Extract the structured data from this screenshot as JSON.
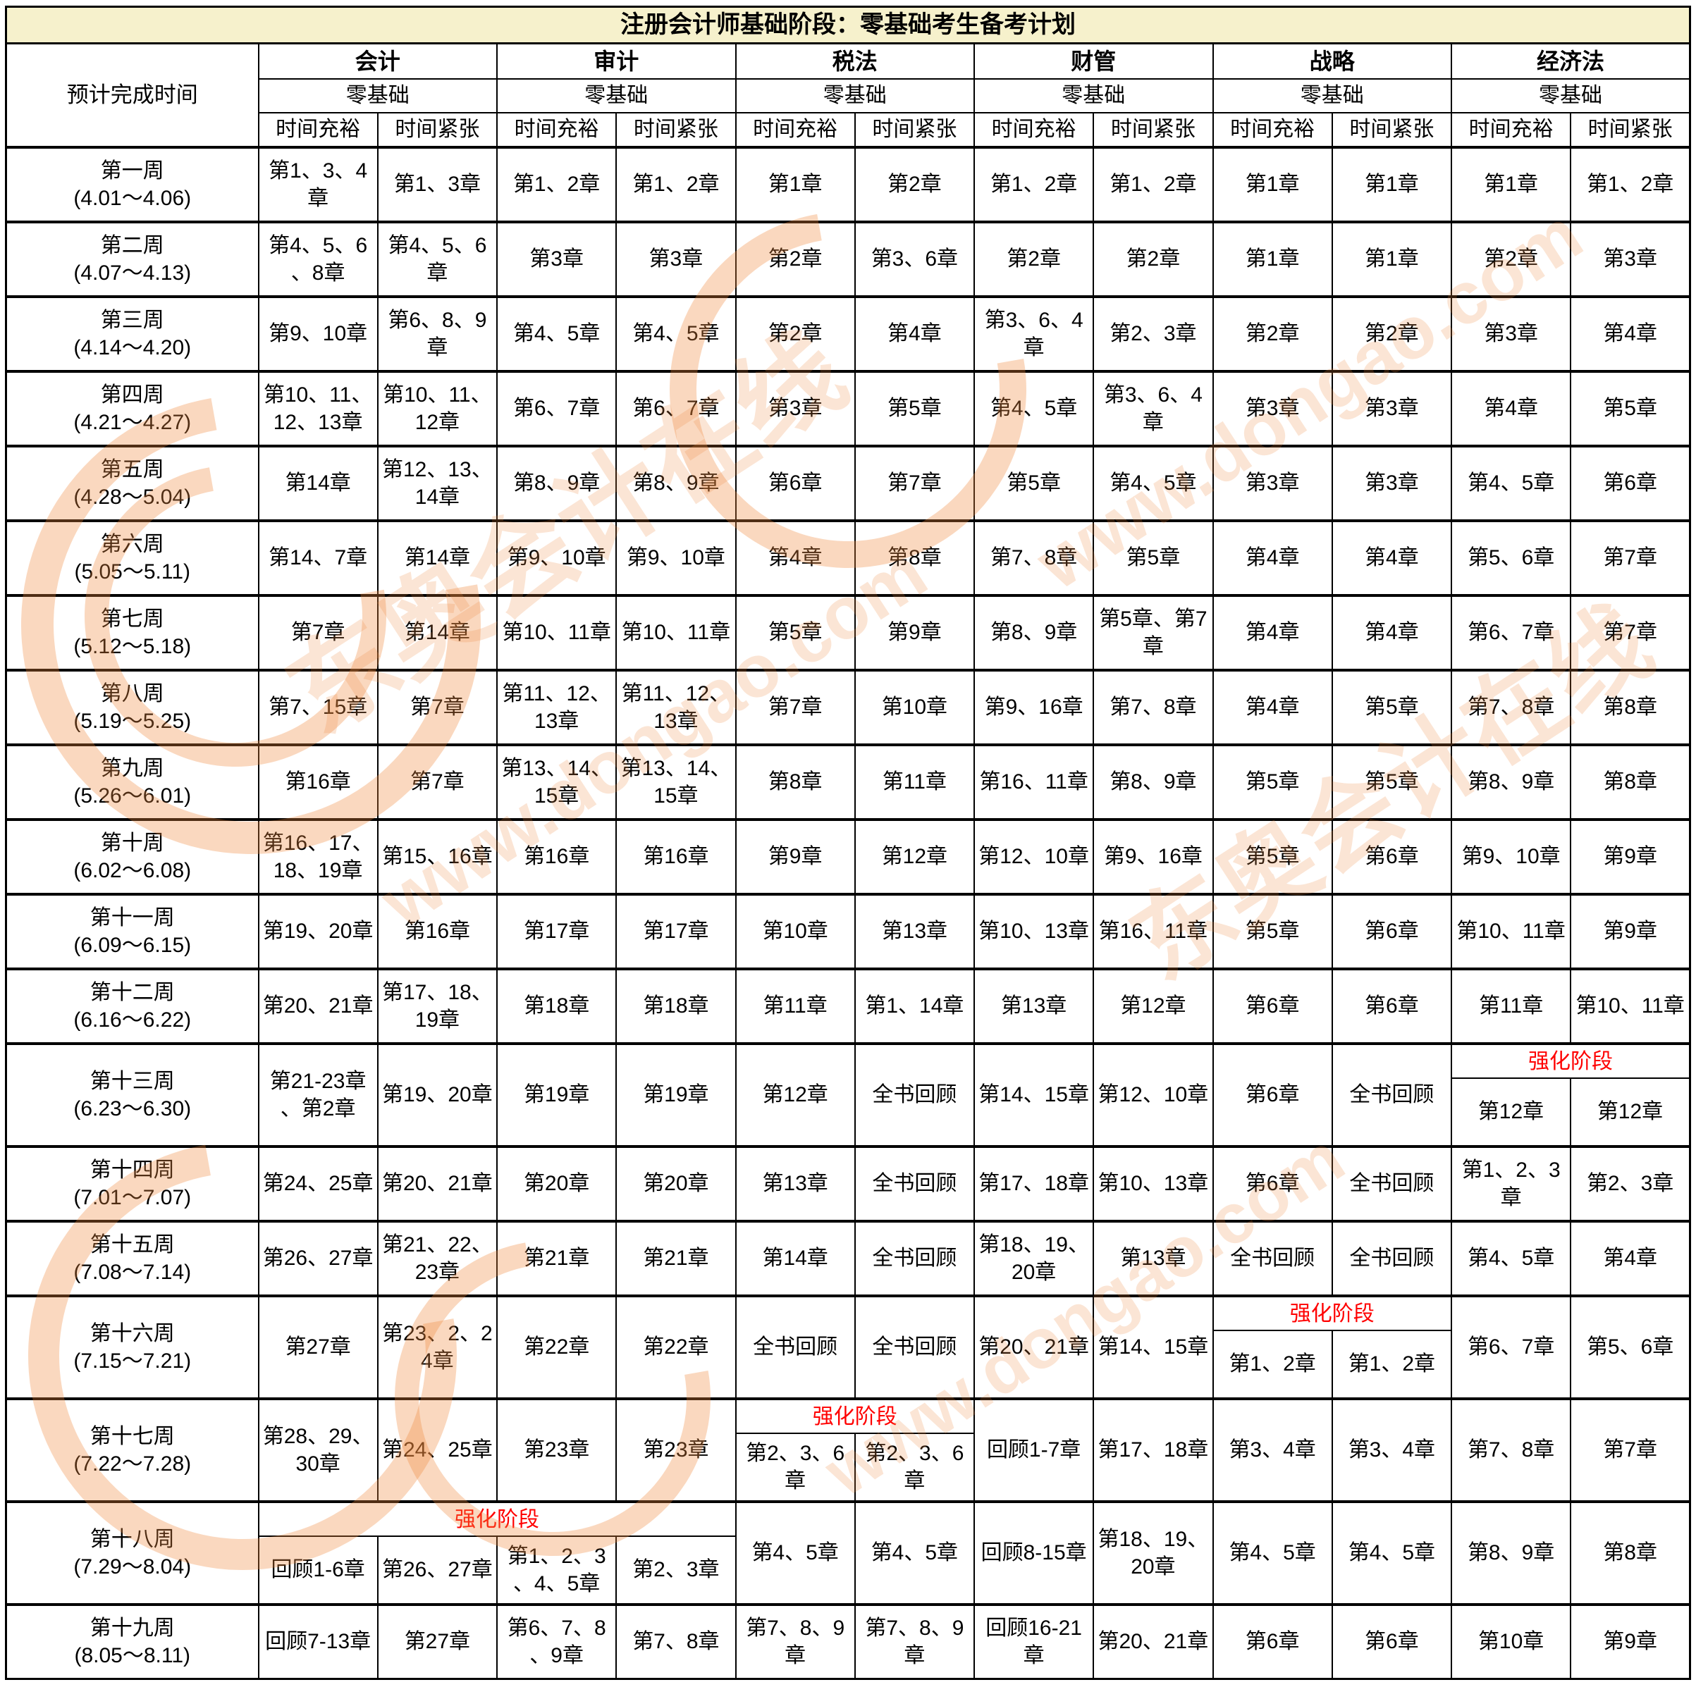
{
  "title": "注册会计师基础阶段：零基础考生备考计划",
  "header": {
    "time_col": "预计完成时间",
    "subjects": [
      "会计",
      "审计",
      "税法",
      "财管",
      "战略",
      "经济法"
    ],
    "level": "零基础",
    "pace_cols": [
      "时间充裕",
      "时间紧张"
    ]
  },
  "phase_label": "强化阶段",
  "colors": {
    "title_bg": "#f6f1cc",
    "phase_red": "#ff0000",
    "border": "#000000",
    "watermark_orange": "#ef8a3e"
  },
  "watermark": {
    "texts": [
      "东奥会计在线",
      "www.dongao.com",
      "www.dongao.com",
      "东奥会计在线",
      "www.dongao.com"
    ]
  },
  "weeks": [
    {
      "label": "第一周",
      "dates": "(4.01～4.06)",
      "cells": [
        "第1、3、4章",
        "第1、3章",
        "第1、2章",
        "第1、2章",
        "第1章",
        "第2章",
        "第1、2章",
        "第1、2章",
        "第1章",
        "第1章",
        "第1章",
        "第1、2章"
      ]
    },
    {
      "label": "第二周",
      "dates": "(4.07～4.13)",
      "cells": [
        "第4、5、6、8章",
        "第4、5、6章",
        "第3章",
        "第3章",
        "第2章",
        "第3、6章",
        "第2章",
        "第2章",
        "第1章",
        "第1章",
        "第2章",
        "第3章"
      ]
    },
    {
      "label": "第三周",
      "dates": "(4.14～4.20)",
      "cells": [
        "第9、10章",
        "第6、8、9章",
        "第4、5章",
        "第4、5章",
        "第2章",
        "第4章",
        "第3、6、4章",
        "第2、3章",
        "第2章",
        "第2章",
        "第3章",
        "第4章"
      ]
    },
    {
      "label": "第四周",
      "dates": "(4.21～4.27)",
      "cells": [
        "第10、11、12、13章",
        "第10、11、12章",
        "第6、7章",
        "第6、7章",
        "第3章",
        "第5章",
        "第4、5章",
        "第3、6、4章",
        "第3章",
        "第3章",
        "第4章",
        "第5章"
      ]
    },
    {
      "label": "第五周",
      "dates": "(4.28～5.04)",
      "cells": [
        "第14章",
        "第12、13、14章",
        "第8、9章",
        "第8、9章",
        "第6章",
        "第7章",
        "第5章",
        "第4、5章",
        "第3章",
        "第3章",
        "第4、5章",
        "第6章"
      ]
    },
    {
      "label": "第六周",
      "dates": "(5.05～5.11)",
      "cells": [
        "第14、7章",
        "第14章",
        "第9、10章",
        "第9、10章",
        "第4章",
        "第8章",
        "第7、8章",
        "第5章",
        "第4章",
        "第4章",
        "第5、6章",
        "第7章"
      ]
    },
    {
      "label": "第七周",
      "dates": "(5.12～5.18)",
      "cells": [
        "第7章",
        "第14章",
        "第10、11章",
        "第10、11章",
        "第5章",
        "第9章",
        "第8、9章",
        "第5章、第7章",
        "第4章",
        "第4章",
        "第6、7章",
        "第7章"
      ]
    },
    {
      "label": "第八周",
      "dates": "(5.19～5.25)",
      "cells": [
        "第7、15章",
        "第7章",
        "第11、12、13章",
        "第11、12、13章",
        "第7章",
        "第10章",
        "第9、16章",
        "第7、8章",
        "第4章",
        "第5章",
        "第7、8章",
        "第8章"
      ]
    },
    {
      "label": "第九周",
      "dates": "(5.26～6.01)",
      "cells": [
        "第16章",
        "第7章",
        "第13、14、15章",
        "第13、14、15章",
        "第8章",
        "第11章",
        "第16、11章",
        "第8、9章",
        "第5章",
        "第5章",
        "第8、9章",
        "第8章"
      ]
    },
    {
      "label": "第十周",
      "dates": "(6.02～6.08)",
      "cells": [
        "第16、17、18、19章",
        "第15、16章",
        "第16章",
        "第16章",
        "第9章",
        "第12章",
        "第12、10章",
        "第9、16章",
        "第5章",
        "第6章",
        "第9、10章",
        "第9章"
      ]
    },
    {
      "label": "第十一周",
      "dates": "(6.09～6.15)",
      "cells": [
        "第19、20章",
        "第16章",
        "第17章",
        "第17章",
        "第10章",
        "第13章",
        "第10、13章",
        "第16、11章",
        "第5章",
        "第6章",
        "第10、11章",
        "第9章"
      ]
    },
    {
      "label": "第十二周",
      "dates": "(6.16～6.22)",
      "cells": [
        "第20、21章",
        "第17、18、19章",
        "第18章",
        "第18章",
        "第11章",
        "第1、14章",
        "第13章",
        "第12章",
        "第6章",
        "第6章",
        "第11章",
        "第10、11章"
      ]
    },
    {
      "label": "第十三周",
      "dates": "(6.23～6.30)",
      "cells": [
        "第21-23章、第2章",
        "第19、20章",
        "第19章",
        "第19章",
        "第12章",
        "全书回顾",
        "第14、15章",
        "第12、10章",
        "第6章",
        "全书回顾",
        {
          "phase": "强化阶段",
          "cells": [
            "第12章",
            "第12章"
          ]
        }
      ]
    },
    {
      "label": "第十四周",
      "dates": "(7.01～7.07)",
      "cells": [
        "第24、25章",
        "第20、21章",
        "第20章",
        "第20章",
        "第13章",
        "全书回顾",
        "第17、18章",
        "第10、13章",
        "第6章",
        "全书回顾",
        "第1、2、3章",
        "第2、3章"
      ]
    },
    {
      "label": "第十五周",
      "dates": "(7.08～7.14)",
      "cells": [
        "第26、27章",
        "第21、22、23章",
        "第21章",
        "第21章",
        "第14章",
        "全书回顾",
        "第18、19、20章",
        "第13章",
        "全书回顾",
        "全书回顾",
        "第4、5章",
        "第4章"
      ]
    },
    {
      "label": "第十六周",
      "dates": "(7.15～7.21)",
      "cells": [
        "第27章",
        "第23、2、24章",
        "第22章",
        "第22章",
        "全书回顾",
        "全书回顾",
        "第20、21章",
        "第14、15章",
        {
          "phase": "强化阶段",
          "cells": [
            "第1、2章",
            "第1、2章"
          ]
        },
        "第6、7章",
        "第5、6章"
      ]
    },
    {
      "label": "第十七周",
      "dates": "(7.22～7.28)",
      "cells": [
        "第28、29、30章",
        "第24、25章",
        "第23章",
        "第23章",
        {
          "phase": "强化阶段",
          "cells": [
            "第2、3、6章",
            "第2、3、6章"
          ]
        },
        "回顾1-7章",
        "第17、18章",
        "第3、4章",
        "第3、4章",
        "第7、8章",
        "第7章"
      ]
    },
    {
      "label": "第十八周",
      "dates": "(7.29～8.04)",
      "cells": [
        {
          "phase": "强化阶段",
          "cells": [
            "回顾1-6章",
            "第26、27章",
            "第1、2、3、4、5章",
            "第2、3章"
          ]
        },
        "第4、5章",
        "第4、5章",
        "回顾8-15章",
        "第18、19、20章",
        "第4、5章",
        "第4、5章",
        "第8、9章",
        "第8章"
      ]
    },
    {
      "label": "第十九周",
      "dates": "(8.05～8.11)",
      "cells": [
        "回顾7-13章",
        "第27章",
        "第6、7、8、9章",
        "第7、8章",
        "第7、8、9章",
        "第7、8、9章",
        "回顾16-21章",
        "第20、21章",
        "第6章",
        "第6章",
        "第10章",
        "第9章"
      ]
    }
  ]
}
